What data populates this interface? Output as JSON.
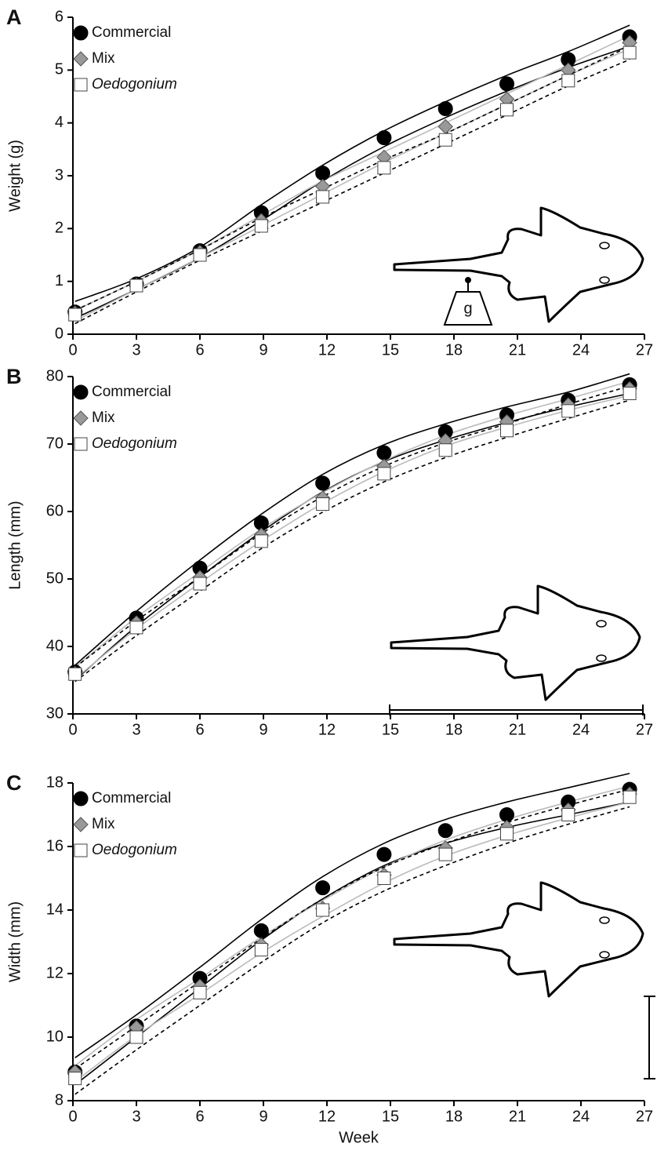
{
  "chart_data": [
    {
      "type": "scatter",
      "label": "A",
      "ylabel": "Weight (g)",
      "annotation": "g",
      "xlim": [
        0,
        27
      ],
      "xticks": [
        0,
        3,
        6,
        9,
        12,
        15,
        18,
        21,
        24,
        27
      ],
      "ylim": [
        0,
        6
      ],
      "yticks": [
        0,
        1,
        2,
        3,
        4,
        5,
        6
      ],
      "x": [
        0.1,
        3,
        6,
        8.9,
        11.8,
        14.7,
        17.6,
        20.5,
        23.4,
        26.3
      ],
      "series": [
        {
          "name": "Commercial",
          "marker": "circle",
          "color": "#000000",
          "line_color": "#000000",
          "dashed": false,
          "italic": false,
          "values": [
            0.42,
            0.95,
            1.58,
            2.3,
            3.05,
            3.72,
            4.27,
            4.74,
            5.2,
            5.63
          ],
          "lower": [
            0.3,
            0.85,
            1.45,
            2.15,
            2.9,
            3.55,
            4.1,
            4.6,
            5.05,
            5.45
          ],
          "upper": [
            0.62,
            1.05,
            1.65,
            2.45,
            3.2,
            3.85,
            4.4,
            4.9,
            5.35,
            5.85
          ]
        },
        {
          "name": "Mix",
          "marker": "diamond",
          "color": "#999999",
          "line_color": "#bbbbbb",
          "dashed": false,
          "italic": false,
          "values": [
            0.4,
            0.93,
            1.55,
            2.15,
            2.8,
            3.35,
            3.93,
            4.45,
            5.0,
            5.52
          ],
          "lower": [
            0.25,
            0.85,
            1.45,
            2.05,
            2.65,
            3.25,
            3.8,
            4.35,
            4.9,
            5.4
          ],
          "upper": [
            0.45,
            1.0,
            1.6,
            2.25,
            2.9,
            3.45,
            4.0,
            4.55,
            5.1,
            5.65
          ]
        },
        {
          "name": "Oedogonium",
          "marker": "square",
          "color": "#ffffff",
          "line_color": "#000000",
          "dashed": true,
          "italic": true,
          "values": [
            0.37,
            0.92,
            1.5,
            2.05,
            2.6,
            3.15,
            3.68,
            4.25,
            4.8,
            5.33
          ],
          "lower": [
            0.2,
            0.8,
            1.4,
            1.95,
            2.5,
            3.05,
            3.6,
            4.15,
            4.7,
            5.2
          ],
          "upper": [
            0.45,
            1.0,
            1.6,
            2.2,
            2.75,
            3.3,
            3.8,
            4.35,
            4.9,
            5.45
          ]
        }
      ]
    },
    {
      "type": "scatter",
      "label": "B",
      "ylabel": "Length (mm)",
      "xlim": [
        0,
        27
      ],
      "xticks": [
        0,
        3,
        6,
        9,
        12,
        15,
        18,
        21,
        24,
        27
      ],
      "ylim": [
        30,
        80
      ],
      "yticks": [
        30,
        40,
        50,
        60,
        70,
        80
      ],
      "x": [
        0.1,
        3,
        6,
        8.9,
        11.8,
        14.7,
        17.6,
        20.5,
        23.4,
        26.3
      ],
      "series": [
        {
          "name": "Commercial",
          "marker": "circle",
          "color": "#000000",
          "line_color": "#000000",
          "dashed": false,
          "italic": false,
          "values": [
            36.2,
            44.2,
            51.6,
            58.3,
            64.2,
            68.7,
            71.8,
            74.3,
            76.5,
            78.8
          ],
          "lower": [
            35,
            43,
            50.3,
            57,
            62.9,
            67.4,
            70.6,
            73.2,
            75.5,
            77.5
          ],
          "upper": [
            37.2,
            45.2,
            52.8,
            59.6,
            65.5,
            69.9,
            73,
            75.5,
            77.7,
            80.4
          ]
        },
        {
          "name": "Mix",
          "marker": "diamond",
          "color": "#999999",
          "line_color": "#bbbbbb",
          "dashed": false,
          "italic": false,
          "values": [
            36,
            43.5,
            50.2,
            56.5,
            62,
            66.7,
            70.5,
            73.3,
            75.8,
            78.2
          ],
          "lower": [
            35.2,
            42.6,
            49.4,
            55.6,
            61.2,
            65.9,
            69.7,
            72.5,
            75,
            77.2
          ],
          "upper": [
            36.9,
            44.3,
            51,
            57.4,
            62.8,
            67.5,
            71.3,
            74.2,
            76.7,
            79.3
          ]
        },
        {
          "name": "Oedogonium",
          "marker": "square",
          "color": "#ffffff",
          "line_color": "#000000",
          "dashed": true,
          "italic": true,
          "values": [
            35.9,
            42.8,
            49.3,
            55.6,
            61.1,
            65.6,
            69.1,
            72,
            74.9,
            77.5
          ],
          "lower": [
            34.8,
            41.6,
            48.2,
            54.5,
            59.9,
            64.4,
            68,
            71,
            73.8,
            76.5
          ],
          "upper": [
            36.9,
            43.8,
            50.3,
            56.7,
            62.2,
            66.7,
            70.2,
            73,
            75.9,
            78.6
          ]
        }
      ]
    },
    {
      "type": "scatter",
      "label": "C",
      "ylabel": "Width (mm)",
      "xlabel": "Week",
      "xlim": [
        0,
        27
      ],
      "xticks": [
        0,
        3,
        6,
        9,
        12,
        15,
        18,
        21,
        24,
        27
      ],
      "ylim": [
        8,
        18
      ],
      "yticks": [
        8,
        10,
        12,
        14,
        16,
        18
      ],
      "x": [
        0.1,
        3,
        6,
        8.9,
        11.8,
        14.7,
        17.6,
        20.5,
        23.4,
        26.3
      ],
      "series": [
        {
          "name": "Commercial",
          "marker": "circle",
          "color": "#000000",
          "line_color": "#000000",
          "dashed": false,
          "italic": false,
          "values": [
            8.9,
            10.35,
            11.85,
            13.35,
            14.7,
            15.75,
            16.5,
            17.0,
            17.4,
            17.8
          ],
          "lower": [
            8.5,
            10.0,
            11.55,
            13.05,
            14.35,
            15.4,
            16.1,
            16.6,
            17.0,
            17.4
          ],
          "upper": [
            9.35,
            10.7,
            12.2,
            13.7,
            15.05,
            16.1,
            16.85,
            17.4,
            17.85,
            18.3
          ]
        },
        {
          "name": "Mix",
          "marker": "diamond",
          "color": "#999999",
          "line_color": "#bbbbbb",
          "dashed": false,
          "italic": false,
          "values": [
            8.9,
            10.3,
            11.6,
            12.9,
            14.05,
            15.1,
            15.95,
            16.6,
            17.15,
            17.65
          ],
          "lower": [
            8.6,
            10.05,
            11.35,
            12.65,
            13.8,
            14.85,
            15.7,
            16.35,
            16.9,
            17.4
          ],
          "upper": [
            9.1,
            10.55,
            11.85,
            13.15,
            14.3,
            15.35,
            16.2,
            16.85,
            17.4,
            17.9
          ]
        },
        {
          "name": "Oedogonium",
          "marker": "square",
          "color": "#ffffff",
          "line_color": "#000000",
          "dashed": true,
          "italic": true,
          "values": [
            8.7,
            10.0,
            11.4,
            12.75,
            14.0,
            15.0,
            15.75,
            16.4,
            17.0,
            17.55
          ],
          "lower": [
            8.2,
            9.6,
            11.0,
            12.35,
            13.6,
            14.6,
            15.4,
            16.1,
            16.7,
            17.25
          ],
          "upper": [
            9.0,
            10.35,
            11.75,
            13.1,
            14.35,
            15.35,
            16.1,
            16.75,
            17.3,
            17.8
          ]
        }
      ]
    }
  ]
}
